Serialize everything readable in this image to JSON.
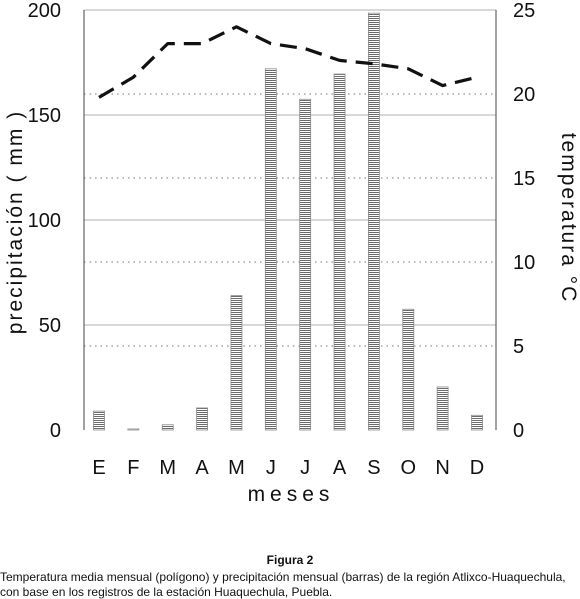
{
  "chart_data": {
    "type": "bar+line",
    "categories": [
      "E",
      "F",
      "M",
      "A",
      "M",
      "J",
      "J",
      "A",
      "S",
      "O",
      "N",
      "D"
    ],
    "series": [
      {
        "type": "bar",
        "axis": "left",
        "values": [
          9,
          0.5,
          2.5,
          10.5,
          64,
          172,
          157.5,
          169.5,
          198.5,
          57.5,
          20.5,
          7
        ]
      },
      {
        "type": "line",
        "axis": "right",
        "style": "dashed",
        "values": [
          19.8,
          21,
          23,
          23,
          24,
          23,
          22.7,
          22,
          21.8,
          21.5,
          20.5,
          21
        ]
      }
    ],
    "xlabel": "meses",
    "ylabel": "precipitación ( mm )",
    "y2label": "temperatura °C",
    "ylim": [
      0,
      200
    ],
    "y2lim": [
      0,
      25
    ],
    "yticks": [
      0,
      50,
      100,
      150,
      200
    ],
    "y2ticks": [
      0,
      5,
      10,
      15,
      20,
      25
    ],
    "grid": true
  },
  "caption": {
    "figure_label": "Figura 2",
    "line1": "Temperatura media mensual (polígono) y precipitación mensual (barras) de la región Atlixco-Huaquechula,",
    "line2": "con base en los registros de la estación Huaquechula, Puebla."
  }
}
